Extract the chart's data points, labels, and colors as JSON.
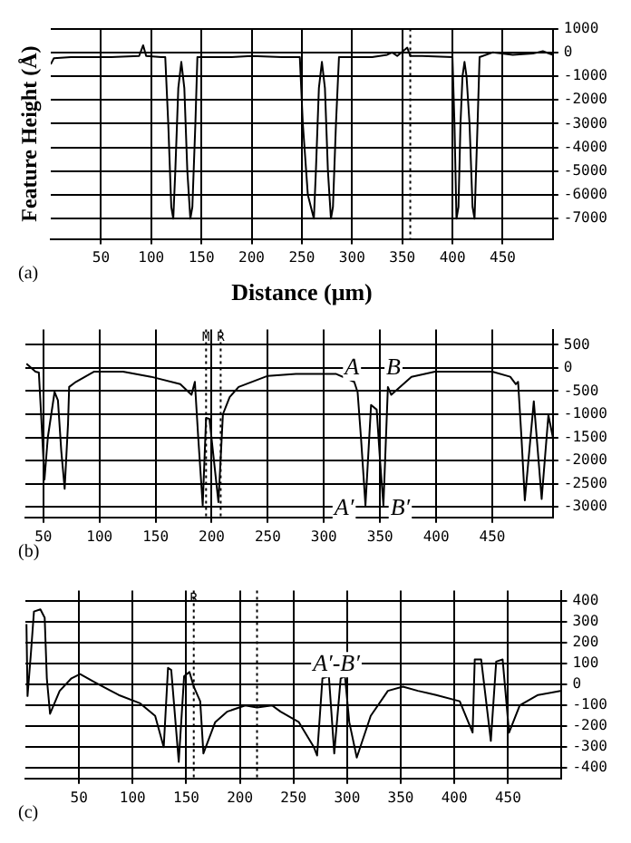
{
  "chart_data": [
    {
      "type": "line",
      "xlabel": "Distance (μm)",
      "ylabel": "Feature Height (Å)",
      "color": "#000000",
      "x": [
        0,
        3,
        20,
        60,
        88,
        92,
        95,
        110,
        114,
        117,
        120,
        122,
        124,
        127,
        130,
        133,
        136,
        139,
        141,
        144,
        146,
        180,
        200,
        230,
        248,
        251,
        256,
        262,
        264,
        267,
        270,
        273,
        276,
        279,
        281,
        284,
        287,
        320,
        335,
        340,
        345,
        355,
        358,
        370,
        400,
        402,
        404,
        406,
        408,
        410,
        412,
        414,
        417,
        420,
        422,
        425,
        427,
        440,
        460,
        480,
        490,
        500
      ],
      "values": [
        -500,
        -250,
        -200,
        -200,
        -150,
        300,
        -150,
        -200,
        -200,
        -3000,
        -6500,
        -7000,
        -5000,
        -1500,
        -400,
        -1500,
        -5000,
        -7000,
        -6500,
        -3000,
        -200,
        -200,
        -150,
        -200,
        -200,
        -3000,
        -6000,
        -7000,
        -5000,
        -1500,
        -400,
        -1500,
        -5000,
        -7000,
        -6500,
        -3000,
        -200,
        -200,
        -100,
        0,
        -150,
        200,
        -150,
        -150,
        -200,
        -3000,
        -7000,
        -6500,
        -3000,
        -1000,
        -400,
        -1000,
        -3000,
        -6500,
        -7000,
        -3000,
        -200,
        0,
        -100,
        -50,
        50,
        -100
      ],
      "xlim": [
        0,
        500
      ],
      "xticks": [
        50,
        100,
        150,
        200,
        250,
        300,
        350,
        400,
        450
      ],
      "ylim": [
        -7850,
        1000
      ],
      "yticks": [
        1000,
        0,
        -1000,
        -2000,
        -3000,
        -4000,
        -5000,
        -6000,
        -7000
      ],
      "grid": true,
      "legend": false,
      "ref_lines": [
        {
          "axis": "x",
          "value": 358,
          "line_style": "dotted"
        }
      ],
      "annotations": [
        "(a)"
      ]
    },
    {
      "type": "line",
      "color": "#000000",
      "x": [
        35,
        43,
        46,
        48,
        51,
        54,
        60,
        63,
        66,
        69,
        72,
        73,
        79,
        95,
        121,
        146,
        172,
        182,
        185,
        188,
        192,
        195,
        198,
        202,
        206,
        210,
        216,
        224,
        250,
        275,
        311,
        327,
        330,
        333,
        337,
        342,
        347,
        350,
        353,
        357,
        360,
        378,
        399,
        450,
        466,
        471,
        473,
        476,
        479,
        487,
        494,
        500,
        504
      ],
      "values": [
        90,
        -80,
        -100,
        -1000,
        -2410,
        -1500,
        -520,
        -700,
        -1800,
        -2610,
        -1200,
        -410,
        -300,
        -80,
        -80,
        -190,
        -350,
        -580,
        -300,
        -1500,
        -2970,
        -1080,
        -1100,
        -2000,
        -2900,
        -1000,
        -630,
        -410,
        -170,
        -130,
        -130,
        -300,
        -520,
        -1500,
        -2970,
        -800,
        -900,
        -2000,
        -2970,
        -410,
        -580,
        -190,
        -80,
        -80,
        -190,
        -350,
        -300,
        -1500,
        -2860,
        -720,
        -2830,
        -1020,
        -1500
      ],
      "xlim": [
        34,
        504
      ],
      "xticks": [
        50,
        100,
        150,
        200,
        250,
        300,
        350,
        400,
        450
      ],
      "ylim": [
        -3230,
        830
      ],
      "yticks": [
        500,
        0,
        -500,
        -1000,
        -1500,
        -2000,
        -2500,
        -3000
      ],
      "grid": true,
      "legend": false,
      "ref_lines": [
        {
          "axis": "x",
          "value": 195,
          "label": "M",
          "line_style": "dotted"
        },
        {
          "axis": "x",
          "value": 208,
          "label": "R",
          "line_style": "dotted"
        }
      ],
      "annotations": [
        {
          "text": "A",
          "x": 325,
          "y": 0
        },
        {
          "text": "B",
          "x": 362,
          "y": 0
        },
        {
          "text": "A′",
          "x": 318,
          "y": -3050
        },
        {
          "text": "B′",
          "x": 368,
          "y": -3050
        },
        "(b)"
      ]
    },
    {
      "type": "line",
      "color": "#000000",
      "x": [
        1,
        2,
        5,
        8,
        14,
        18,
        20,
        23,
        32,
        43,
        51,
        65,
        87,
        107,
        121,
        129,
        133,
        136,
        143,
        148,
        153,
        157,
        163,
        166,
        177,
        188,
        205,
        216,
        230,
        238,
        255,
        269,
        272,
        277,
        283,
        288,
        294,
        298,
        302,
        309,
        322,
        338,
        352,
        366,
        383,
        405,
        417,
        419,
        425,
        434,
        439,
        445,
        451,
        461,
        478,
        500
      ],
      "values": [
        290,
        -55,
        140,
        350,
        360,
        320,
        30,
        -140,
        -30,
        30,
        50,
        10,
        -50,
        -90,
        -150,
        -300,
        80,
        70,
        -370,
        40,
        60,
        -10,
        -80,
        -330,
        -180,
        -130,
        -100,
        -110,
        -100,
        -130,
        -180,
        -300,
        -340,
        30,
        40,
        -330,
        30,
        40,
        -180,
        -350,
        -150,
        -30,
        -10,
        -30,
        -50,
        -80,
        -230,
        120,
        120,
        -270,
        110,
        120,
        -230,
        -100,
        -50,
        -30
      ],
      "xlim": [
        0,
        500
      ],
      "xticks": [
        50,
        100,
        150,
        200,
        250,
        300,
        350,
        400,
        450
      ],
      "ylim": [
        -450,
        450
      ],
      "yticks": [
        400,
        300,
        200,
        100,
        0,
        -100,
        -200,
        -300,
        -400
      ],
      "grid": true,
      "legend": false,
      "ref_lines": [
        {
          "axis": "x",
          "value": 157,
          "label": "R",
          "line_style": "dotted"
        },
        {
          "axis": "x",
          "value": 216,
          "line_style": "dotted"
        }
      ],
      "annotations": [
        {
          "text": "A′-B′",
          "x": 290,
          "y": 95
        },
        "(c)"
      ]
    }
  ]
}
